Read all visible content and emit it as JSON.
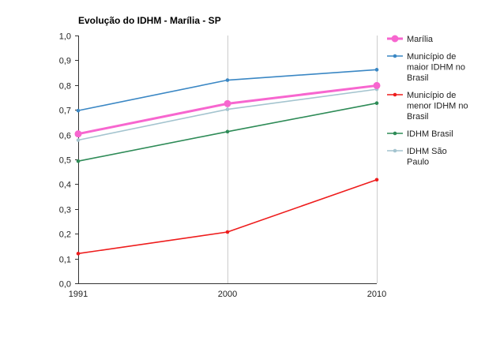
{
  "chart_data": {
    "type": "line",
    "title": "Evolução do IDHM - Marília - SP",
    "xlabel": "",
    "ylabel": "",
    "x": [
      "1991",
      "2000",
      "2010"
    ],
    "ylim": [
      0,
      1
    ],
    "yticks": [
      "0,0",
      "0,1",
      "0,2",
      "0,3",
      "0,4",
      "0,5",
      "0,6",
      "0,7",
      "0,8",
      "0,9",
      "1,0"
    ],
    "grid": "vertical",
    "legend_position": "right",
    "series": [
      {
        "name": "Marília",
        "values": [
          0.603,
          0.725,
          0.798
        ],
        "color": "#f766cf",
        "emphasis": true
      },
      {
        "name": "Município de maior IDHM no Brasil",
        "legend_lines": [
          "Município de",
          "maior IDHM no",
          "Brasil"
        ],
        "values": [
          0.697,
          0.82,
          0.862
        ],
        "color": "#3a87c4"
      },
      {
        "name": "Município de menor IDHM no Brasil",
        "legend_lines": [
          "Município de",
          "menor IDHM no",
          "Brasil"
        ],
        "values": [
          0.12,
          0.207,
          0.418
        ],
        "color": "#ee1c1c"
      },
      {
        "name": "IDHM Brasil",
        "legend_lines": [
          "IDHM Brasil"
        ],
        "values": [
          0.493,
          0.612,
          0.727
        ],
        "color": "#2e8b57"
      },
      {
        "name": "IDHM São Paulo",
        "legend_lines": [
          "IDHM São",
          "Paulo"
        ],
        "values": [
          0.578,
          0.702,
          0.783
        ],
        "color": "#a4c4cf"
      }
    ]
  }
}
